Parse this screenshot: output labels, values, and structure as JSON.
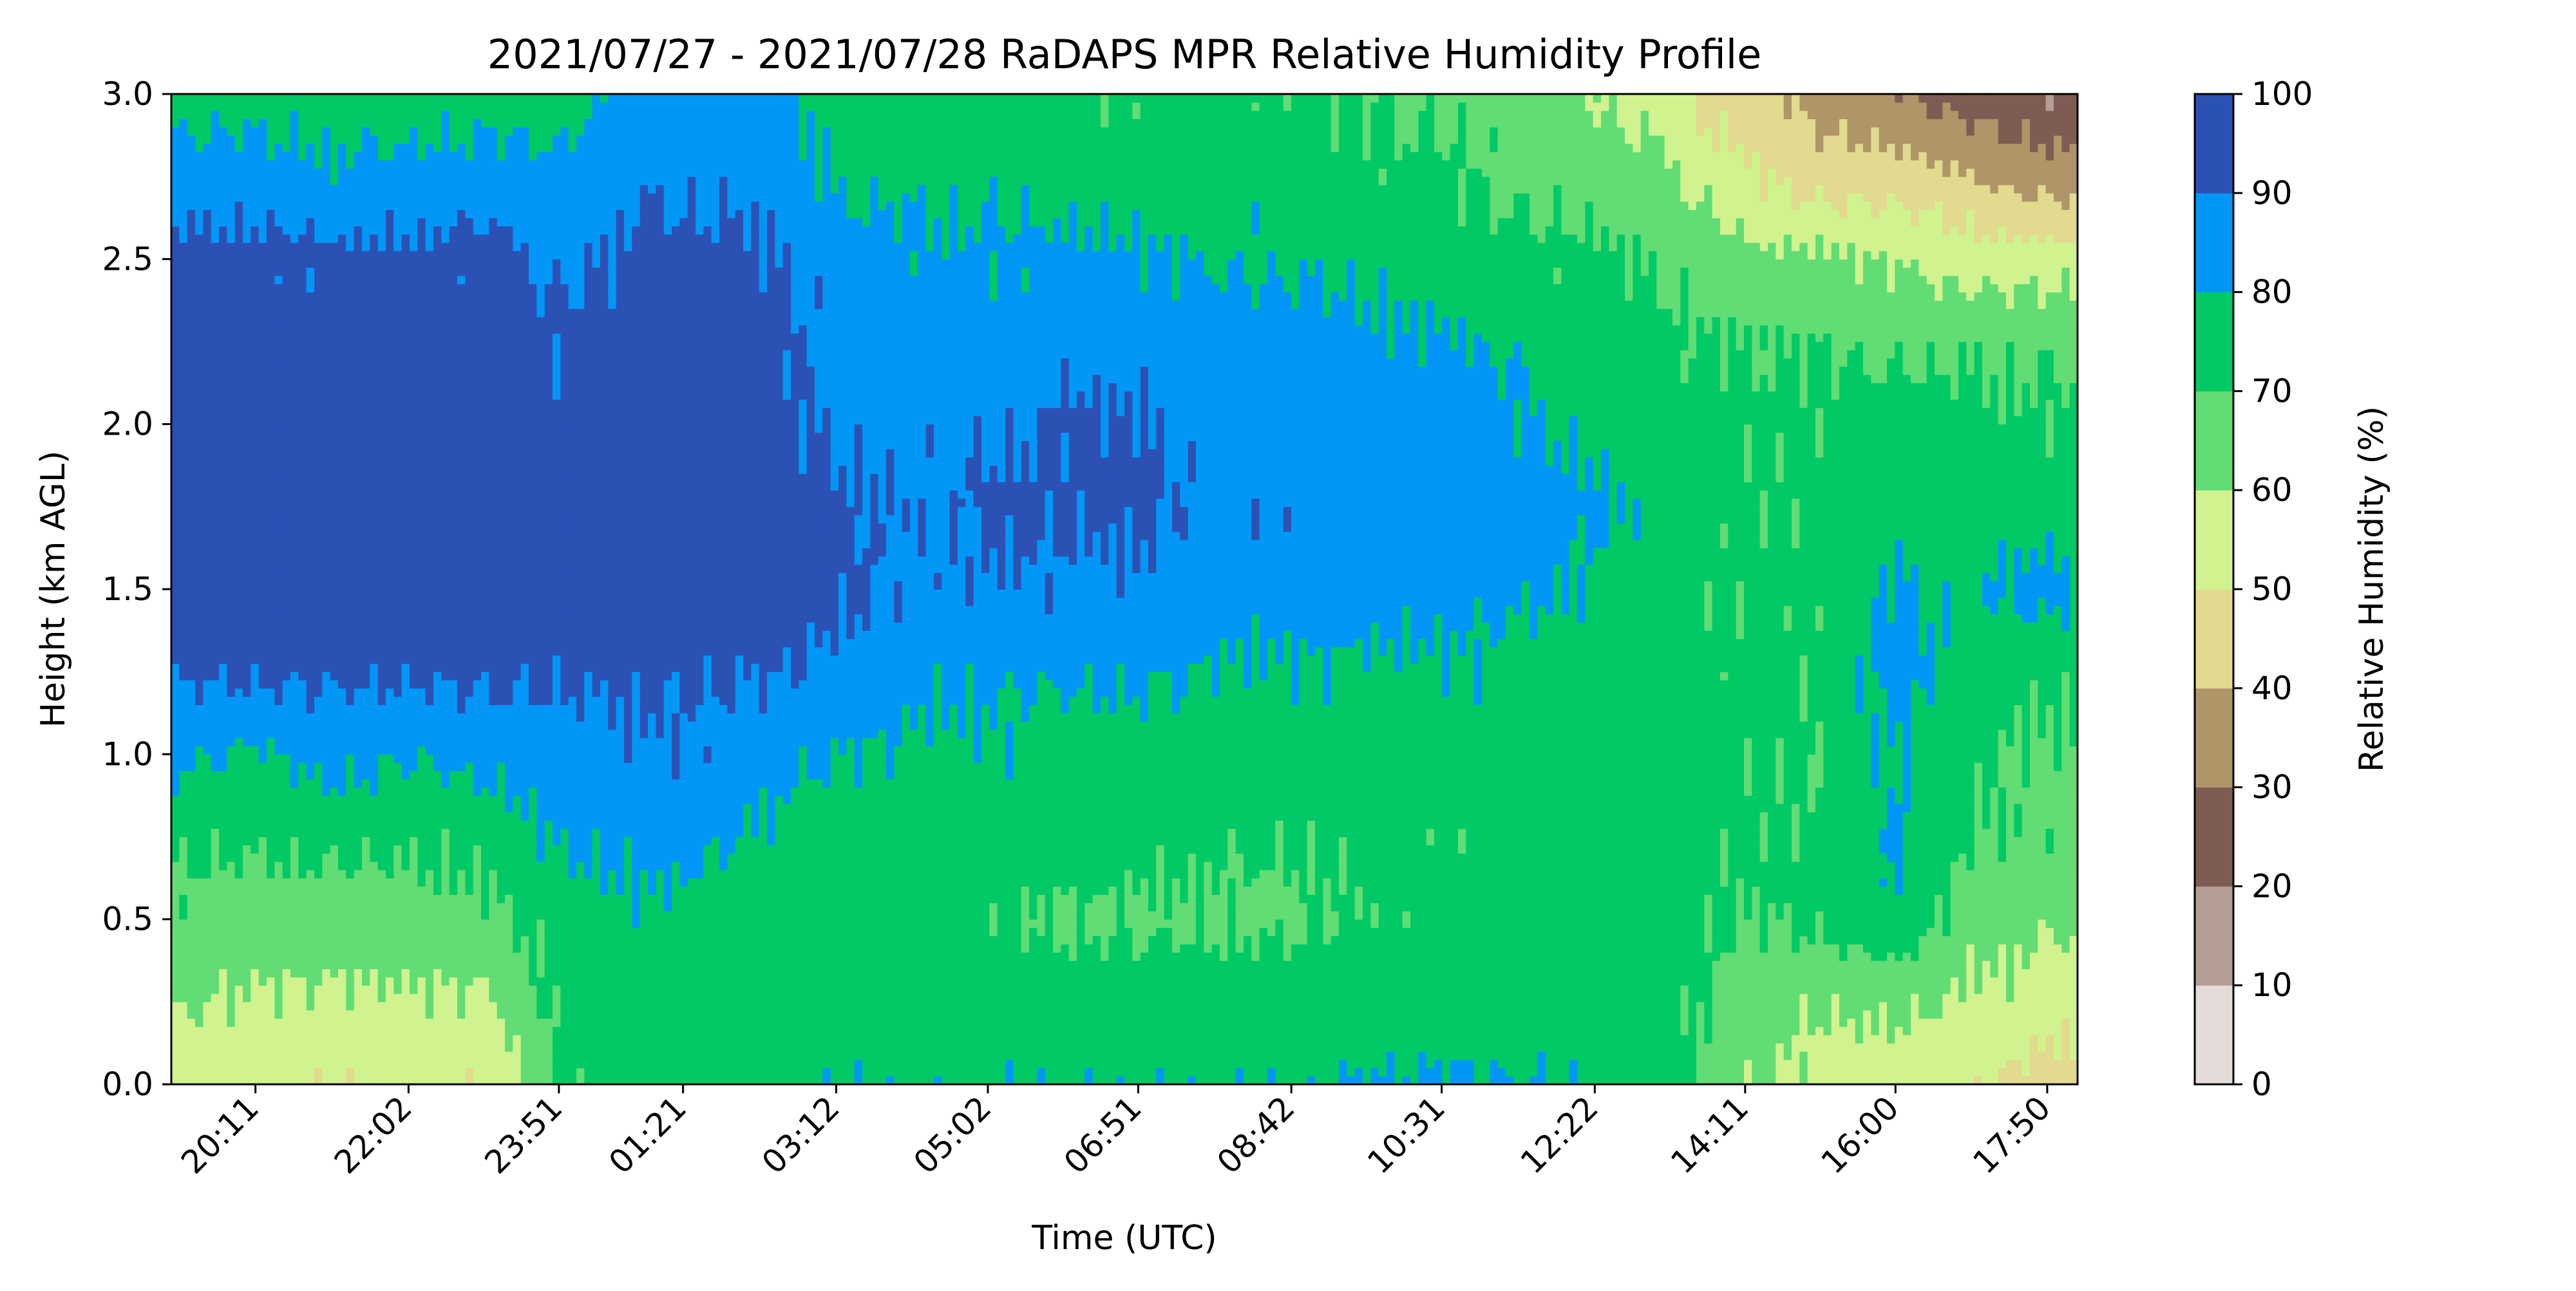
{
  "chart_data": {
    "type": "heatmap",
    "subtype": "filled-contour",
    "title": "2021/07/27 - 2021/07/28 RaDAPS MPR Relative Humidity Profile",
    "xlabel": "Time (UTC)",
    "ylabel": "Height (km AGL)",
    "colorbar_label": "Relative Humidity (%)",
    "x_start_time": "19:10",
    "x_end_time": "18:12",
    "x_ticks": [
      "20:11",
      "22:02",
      "23:51",
      "01:21",
      "03:12",
      "05:02",
      "06:51",
      "08:42",
      "10:31",
      "12:22",
      "14:11",
      "16:00",
      "17:50"
    ],
    "ylim": [
      0,
      3
    ],
    "y_ticks": [
      "0.0",
      "0.5",
      "1.0",
      "1.5",
      "2.0",
      "2.5",
      "3.0"
    ],
    "colorbar_ticks": [
      "0",
      "10",
      "20",
      "30",
      "40",
      "50",
      "60",
      "70",
      "80",
      "90",
      "100"
    ],
    "levels": [
      {
        "range": [
          0,
          10
        ],
        "color": "#e4dcd8"
      },
      {
        "range": [
          10,
          20
        ],
        "color": "#b49e96"
      },
      {
        "range": [
          20,
          30
        ],
        "color": "#7f5c53"
      },
      {
        "range": [
          30,
          40
        ],
        "color": "#b09569"
      },
      {
        "range": [
          40,
          50
        ],
        "color": "#e2da8e"
      },
      {
        "range": [
          50,
          60
        ],
        "color": "#d0f38f"
      },
      {
        "range": [
          60,
          70
        ],
        "color": "#62dc74"
      },
      {
        "range": [
          70,
          80
        ],
        "color": "#00c965"
      },
      {
        "range": [
          80,
          90
        ],
        "color": "#0297f7"
      },
      {
        "range": [
          90,
          100
        ],
        "color": "#2c51b5"
      }
    ],
    "profile_times": [
      "19:10",
      "20:11",
      "21:05",
      "22:02",
      "23:00",
      "23:51",
      "00:45",
      "01:21",
      "02:15",
      "03:12",
      "04:10",
      "05:02",
      "06:00",
      "06:51",
      "07:45",
      "08:42",
      "09:40",
      "10:31",
      "11:25",
      "12:22",
      "13:15",
      "13:50",
      "14:11",
      "15:05",
      "16:00",
      "16:55",
      "17:50",
      "18:12"
    ],
    "heights_km": [
      0.0,
      0.25,
      0.5,
      0.75,
      1.0,
      1.25,
      1.5,
      1.75,
      2.0,
      2.25,
      2.5,
      2.75,
      3.0
    ],
    "rh_percent": [
      [
        55,
        62,
        67,
        73,
        82,
        92,
        95,
        95,
        95,
        95,
        93,
        85,
        75
      ],
      [
        55,
        58,
        65,
        72,
        78,
        92,
        95,
        95,
        95,
        95,
        93,
        85,
        75
      ],
      [
        50,
        58,
        65,
        73,
        85,
        92,
        95,
        95,
        95,
        95,
        92,
        82,
        75
      ],
      [
        55,
        58,
        67,
        72,
        80,
        92,
        95,
        95,
        95,
        95,
        93,
        82,
        75
      ],
      [
        50,
        58,
        67,
        73,
        85,
        92,
        95,
        95,
        95,
        95,
        93,
        85,
        75
      ],
      [
        70,
        73,
        75,
        82,
        85,
        92,
        94,
        93,
        92,
        92,
        88,
        82,
        75
      ],
      [
        75,
        75,
        78,
        83,
        88,
        92,
        95,
        95,
        95,
        95,
        92,
        88,
        85
      ],
      [
        75,
        75,
        75,
        85,
        88,
        92,
        95,
        95,
        95,
        95,
        92,
        88,
        85
      ],
      [
        78,
        75,
        75,
        78,
        85,
        91,
        95,
        95,
        95,
        95,
        92,
        88,
        85
      ],
      [
        78,
        75,
        75,
        75,
        80,
        88,
        92,
        92,
        88,
        86,
        85,
        78,
        75
      ],
      [
        78,
        75,
        75,
        75,
        78,
        82,
        88,
        88,
        88,
        85,
        82,
        78,
        75
      ],
      [
        78,
        75,
        72,
        75,
        78,
        82,
        88,
        92,
        88,
        85,
        82,
        78,
        75
      ],
      [
        78,
        75,
        68,
        75,
        75,
        82,
        88,
        92,
        92,
        85,
        82,
        75,
        72
      ],
      [
        78,
        75,
        68,
        75,
        75,
        82,
        88,
        92,
        92,
        85,
        82,
        75,
        72
      ],
      [
        78,
        75,
        68,
        72,
        75,
        80,
        85,
        88,
        85,
        85,
        80,
        75,
        72
      ],
      [
        78,
        75,
        68,
        72,
        75,
        78,
        85,
        88,
        85,
        85,
        78,
        75,
        72
      ],
      [
        80,
        75,
        72,
        72,
        75,
        78,
        85,
        85,
        85,
        82,
        78,
        72,
        70
      ],
      [
        82,
        75,
        75,
        72,
        75,
        78,
        84,
        85,
        88,
        82,
        75,
        72,
        68
      ],
      [
        80,
        75,
        75,
        75,
        75,
        78,
        82,
        85,
        82,
        78,
        72,
        68,
        65
      ],
      [
        78,
        75,
        75,
        75,
        75,
        75,
        78,
        82,
        78,
        75,
        72,
        65,
        60
      ],
      [
        75,
        75,
        75,
        75,
        75,
        75,
        75,
        75,
        75,
        72,
        68,
        62,
        55
      ],
      [
        65,
        68,
        72,
        72,
        72,
        72,
        72,
        72,
        72,
        70,
        65,
        55,
        45
      ],
      [
        62,
        65,
        70,
        72,
        72,
        72,
        72,
        72,
        72,
        70,
        62,
        52,
        45
      ],
      [
        55,
        62,
        72,
        72,
        70,
        72,
        72,
        72,
        72,
        70,
        62,
        45,
        35
      ],
      [
        55,
        62,
        78,
        82,
        80,
        85,
        82,
        75,
        75,
        68,
        60,
        45,
        30
      ],
      [
        52,
        58,
        65,
        70,
        72,
        75,
        78,
        75,
        72,
        68,
        55,
        40,
        25
      ],
      [
        45,
        55,
        62,
        68,
        68,
        72,
        85,
        75,
        72,
        68,
        55,
        35,
        20
      ],
      [
        45,
        55,
        62,
        68,
        68,
        72,
        80,
        75,
        72,
        68,
        55,
        35,
        20
      ]
    ],
    "grid": false,
    "colorbar_position": "right"
  }
}
